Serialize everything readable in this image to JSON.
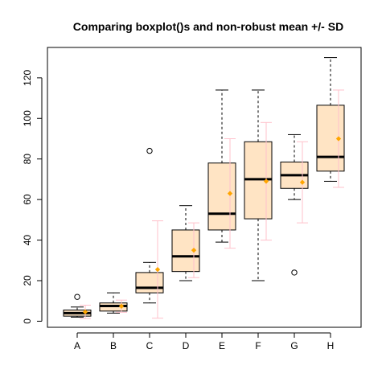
{
  "chart_data": {
    "type": "boxplot",
    "title": "Comparing boxplot()s and non-robust mean +/- SD",
    "xlabel": "",
    "ylabel": "",
    "categories": [
      "A",
      "B",
      "C",
      "D",
      "E",
      "F",
      "G",
      "H"
    ],
    "ylim": [
      -3,
      135
    ],
    "yticks": [
      0,
      20,
      40,
      60,
      80,
      100,
      120
    ],
    "grid": false,
    "colors": {
      "box_fill": "#ffe4c4",
      "box_stroke": "#000000",
      "median": "#000000",
      "whisker": "#000000",
      "outlier": "#000000",
      "mean_point": "#ffa500",
      "sd_bar": "#ffc0cb"
    },
    "boxes": [
      {
        "category": "A",
        "min": 2,
        "q1": 2.5,
        "median": 4,
        "q3": 5.5,
        "max": 7,
        "outliers": [
          12
        ]
      },
      {
        "category": "B",
        "min": 4,
        "q1": 5,
        "median": 7.5,
        "q3": 9,
        "max": 14,
        "outliers": []
      },
      {
        "category": "C",
        "min": 9,
        "q1": 14,
        "median": 16.5,
        "q3": 24,
        "max": 29,
        "outliers": [
          84
        ]
      },
      {
        "category": "D",
        "min": 20,
        "q1": 24.5,
        "median": 32,
        "q3": 45,
        "max": 57,
        "outliers": []
      },
      {
        "category": "E",
        "min": 39,
        "q1": 45,
        "median": 53,
        "q3": 78,
        "max": 114,
        "outliers": []
      },
      {
        "category": "F",
        "min": 20,
        "q1": 50.5,
        "median": 70,
        "q3": 88.5,
        "max": 114,
        "outliers": []
      },
      {
        "category": "G",
        "min": 60,
        "q1": 65.5,
        "median": 72,
        "q3": 78.5,
        "max": 92,
        "outliers": [
          24
        ]
      },
      {
        "category": "H",
        "min": 69,
        "q1": 74,
        "median": 81,
        "q3": 106.5,
        "max": 130,
        "outliers": []
      }
    ],
    "mean_sd": [
      {
        "category": "A",
        "mean": 4.6,
        "sd": 3.3
      },
      {
        "category": "B",
        "mean": 7.4,
        "sd": 3.0
      },
      {
        "category": "C",
        "mean": 25.5,
        "sd": 24.0
      },
      {
        "category": "D",
        "mean": 35.0,
        "sd": 13.5
      },
      {
        "category": "E",
        "mean": 63.0,
        "sd": 27.0
      },
      {
        "category": "F",
        "mean": 69.0,
        "sd": 29.0
      },
      {
        "category": "G",
        "mean": 68.5,
        "sd": 20.0
      },
      {
        "category": "H",
        "mean": 90.0,
        "sd": 24.0
      }
    ]
  }
}
